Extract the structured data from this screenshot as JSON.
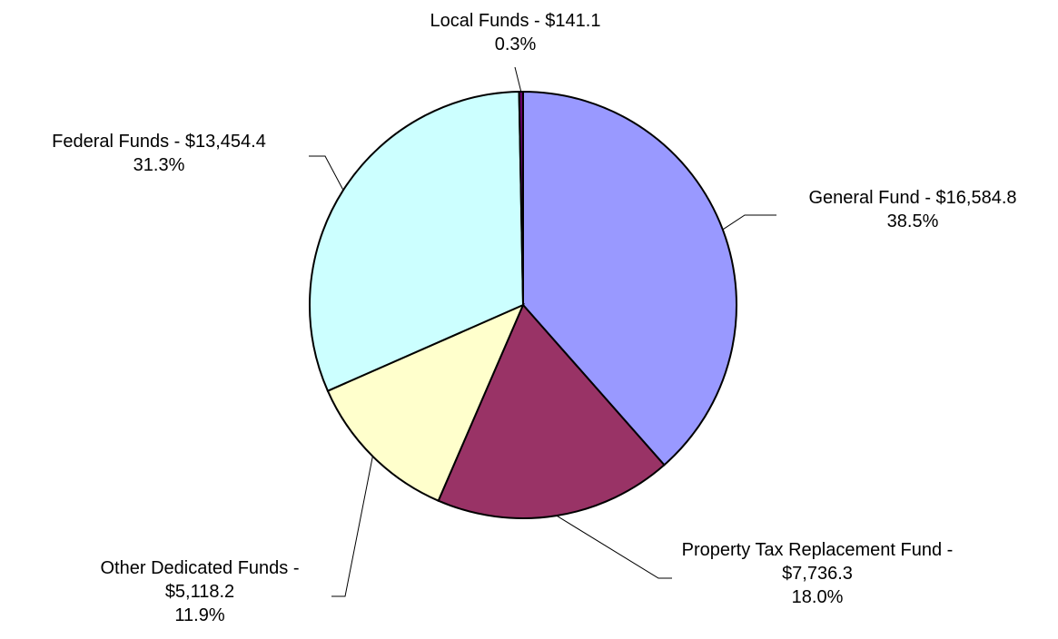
{
  "chart_data": {
    "type": "pie",
    "categories": [
      "General Fund - $16,584.8",
      "Property Tax Replacement Fund - $7,736.3",
      "Other Dedicated Funds - $5,118.2",
      "Federal Funds - $13,454.4",
      "Local Funds - $141.1"
    ],
    "values": [
      38.5,
      18.0,
      11.9,
      31.3,
      0.3
    ],
    "value_labels": [
      "38.5%",
      "18.0%",
      "11.9%",
      "31.3%",
      "0.3%"
    ],
    "colors": [
      "#9999ff",
      "#993366",
      "#ffffcc",
      "#ccffff",
      "#660066"
    ]
  }
}
